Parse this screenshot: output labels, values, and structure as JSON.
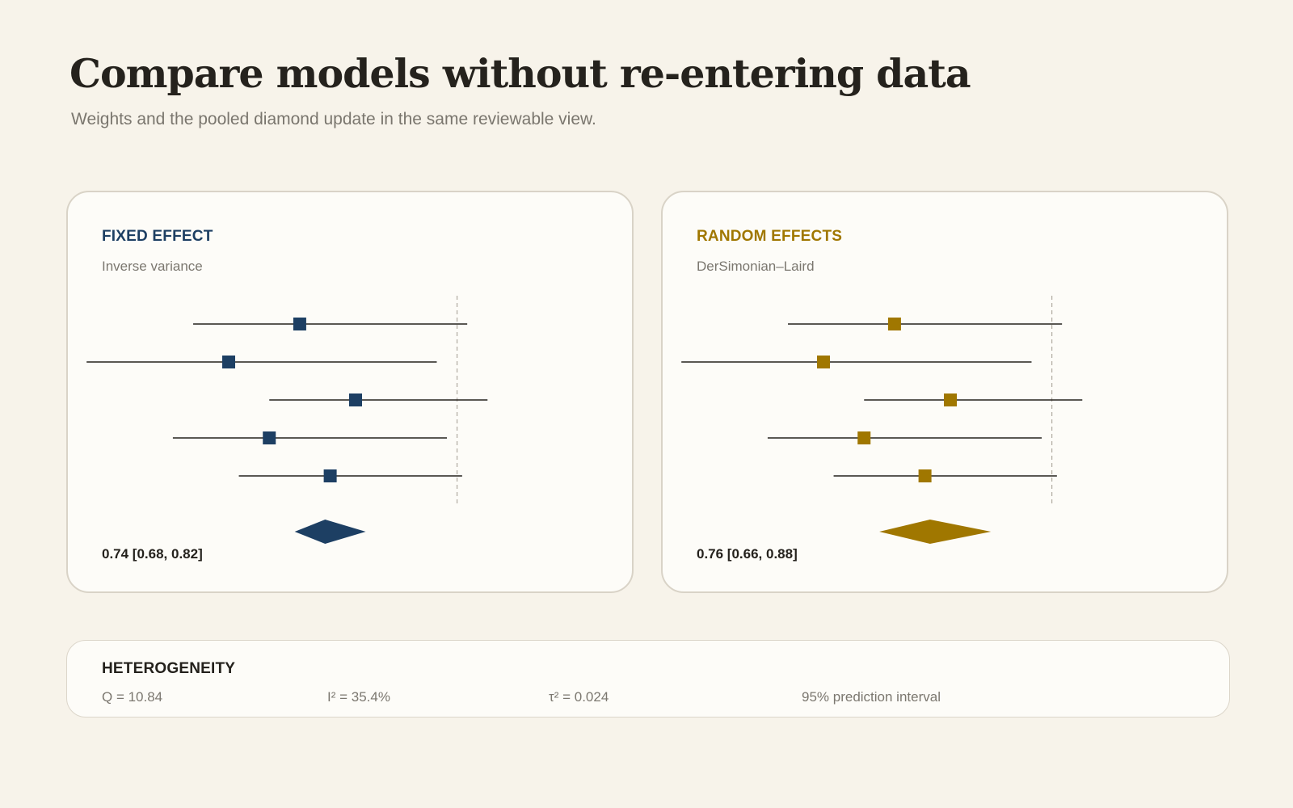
{
  "header": {
    "title": "Compare models without re-entering data",
    "subtitle": "Weights and the pooled diamond update in the same reviewable view."
  },
  "colors": {
    "fixed": "#1d3f63",
    "random": "#a07700",
    "ci_line": "#24211c",
    "null_line": "#b5b0a6"
  },
  "panels": [
    {
      "title": "FIXED EFFECT",
      "subtitle": "Inverse variance",
      "pooled_label": "0.74 [0.68, 0.82]"
    },
    {
      "title": "RANDOM EFFECTS",
      "subtitle": "DerSimonian–Laird",
      "pooled_label": "0.76 [0.66, 0.88]"
    }
  ],
  "heterogeneity": {
    "title": "HETEROGENEITY",
    "q": "Q = 10.84",
    "i2": "I² = 35.4%",
    "tau2": "τ² = 0.024",
    "prediction": "95% prediction interval"
  },
  "chart_data": [
    {
      "type": "forest",
      "title": "FIXED EFFECT",
      "subtitle": "Inverse variance",
      "null_value": 1.0,
      "xlim": [
        0.3,
        1.3
      ],
      "studies": [
        {
          "estimate": 0.69,
          "lower": 0.48,
          "upper": 1.02
        },
        {
          "estimate": 0.55,
          "lower": 0.27,
          "upper": 0.96
        },
        {
          "estimate": 0.8,
          "lower": 0.63,
          "upper": 1.06
        },
        {
          "estimate": 0.63,
          "lower": 0.44,
          "upper": 0.98
        },
        {
          "estimate": 0.75,
          "lower": 0.57,
          "upper": 1.01
        }
      ],
      "pooled": {
        "estimate": 0.74,
        "lower": 0.68,
        "upper": 0.82
      }
    },
    {
      "type": "forest",
      "title": "RANDOM EFFECTS",
      "subtitle": "DerSimonian–Laird",
      "null_value": 1.0,
      "xlim": [
        0.3,
        1.3
      ],
      "studies": [
        {
          "estimate": 0.69,
          "lower": 0.48,
          "upper": 1.02
        },
        {
          "estimate": 0.55,
          "lower": 0.27,
          "upper": 0.96
        },
        {
          "estimate": 0.8,
          "lower": 0.63,
          "upper": 1.06
        },
        {
          "estimate": 0.63,
          "lower": 0.44,
          "upper": 0.98
        },
        {
          "estimate": 0.75,
          "lower": 0.57,
          "upper": 1.01
        }
      ],
      "pooled": {
        "estimate": 0.76,
        "lower": 0.66,
        "upper": 0.88
      }
    }
  ]
}
